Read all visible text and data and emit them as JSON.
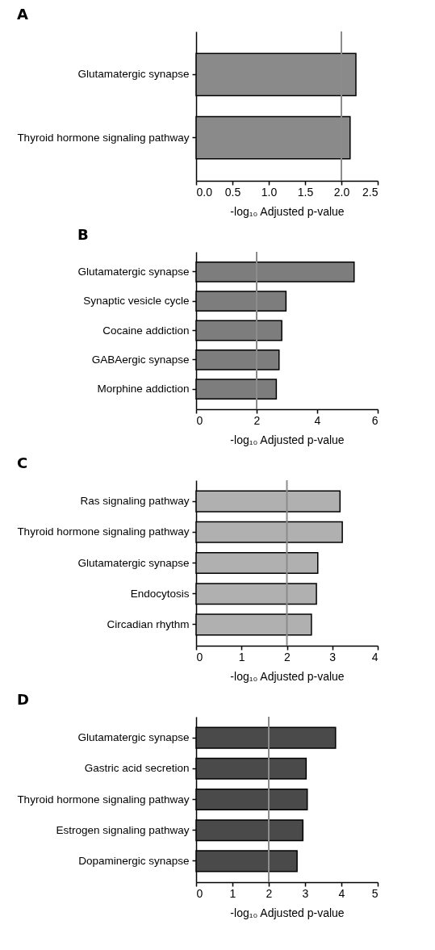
{
  "chart_data": [
    {
      "type": "bar",
      "orientation": "horizontal",
      "title": "A",
      "xlabel": "-log₁₀ Adjusted p-value",
      "categories": [
        "Glutamatergic synapse",
        "Thyroid hormone signaling pathway"
      ],
      "values": [
        2.2,
        2.12
      ],
      "color": "#8a8a8a",
      "xlim": [
        0,
        2.5
      ],
      "xticks": [
        {
          "value": 0,
          "label": "0.0"
        },
        0.5,
        {
          "value": 1,
          "label": "1.0"
        },
        1.5,
        {
          "value": 2,
          "label": "2.0"
        },
        2.5
      ],
      "ref_lines": [
        {
          "axis": "x",
          "value": 2,
          "color": "#8c8c8c"
        }
      ],
      "grid": false
    },
    {
      "type": "bar",
      "orientation": "horizontal",
      "title": "B",
      "xlabel": "-log₁₀ Adjusted p-value",
      "categories": [
        "Glutamatergic synapse",
        "Synaptic vesicle cycle",
        "Cocaine addiction",
        "GABAergic synapse",
        "Morphine addiction"
      ],
      "values": [
        5.22,
        2.97,
        2.83,
        2.74,
        2.65
      ],
      "color": "#7d7d7d",
      "xlim": [
        0,
        6
      ],
      "xticks": [
        0,
        2,
        4,
        6
      ],
      "ref_lines": [
        {
          "axis": "x",
          "value": 2,
          "color": "#8c8c8c"
        }
      ],
      "grid": false
    },
    {
      "type": "bar",
      "orientation": "horizontal",
      "title": "C",
      "xlabel": "-log₁₀ Adjusted p-value",
      "categories": [
        "Ras signaling pathway",
        "Thyroid hormone signaling pathway",
        "Glutamatergic synapse",
        "Endocytosis",
        "Circadian rhythm"
      ],
      "values": [
        3.17,
        3.22,
        2.68,
        2.65,
        2.54
      ],
      "color": "#b0b0b0",
      "xlim": [
        0,
        4
      ],
      "xticks": [
        0,
        1,
        2,
        3,
        4
      ],
      "ref_lines": [
        {
          "axis": "x",
          "value": 2,
          "color": "#8c8c8c"
        }
      ],
      "grid": false
    },
    {
      "type": "bar",
      "orientation": "horizontal",
      "title": "D",
      "xlabel": "-log₁₀ Adjusted p-value",
      "categories": [
        "Glutamatergic synapse",
        "Gastric acid secretion",
        "Thyroid hormone signaling pathway",
        "Estrogen signaling pathway",
        "Dopaminergic synapse"
      ],
      "values": [
        3.84,
        3.03,
        3.06,
        2.94,
        2.78
      ],
      "color": "#4a4a4a",
      "xlim": [
        0,
        5
      ],
      "xticks": [
        0,
        1,
        2,
        3,
        4,
        5
      ],
      "ref_lines": [
        {
          "axis": "x",
          "value": 2,
          "color": "#8c8c8c"
        }
      ],
      "grid": false
    }
  ]
}
